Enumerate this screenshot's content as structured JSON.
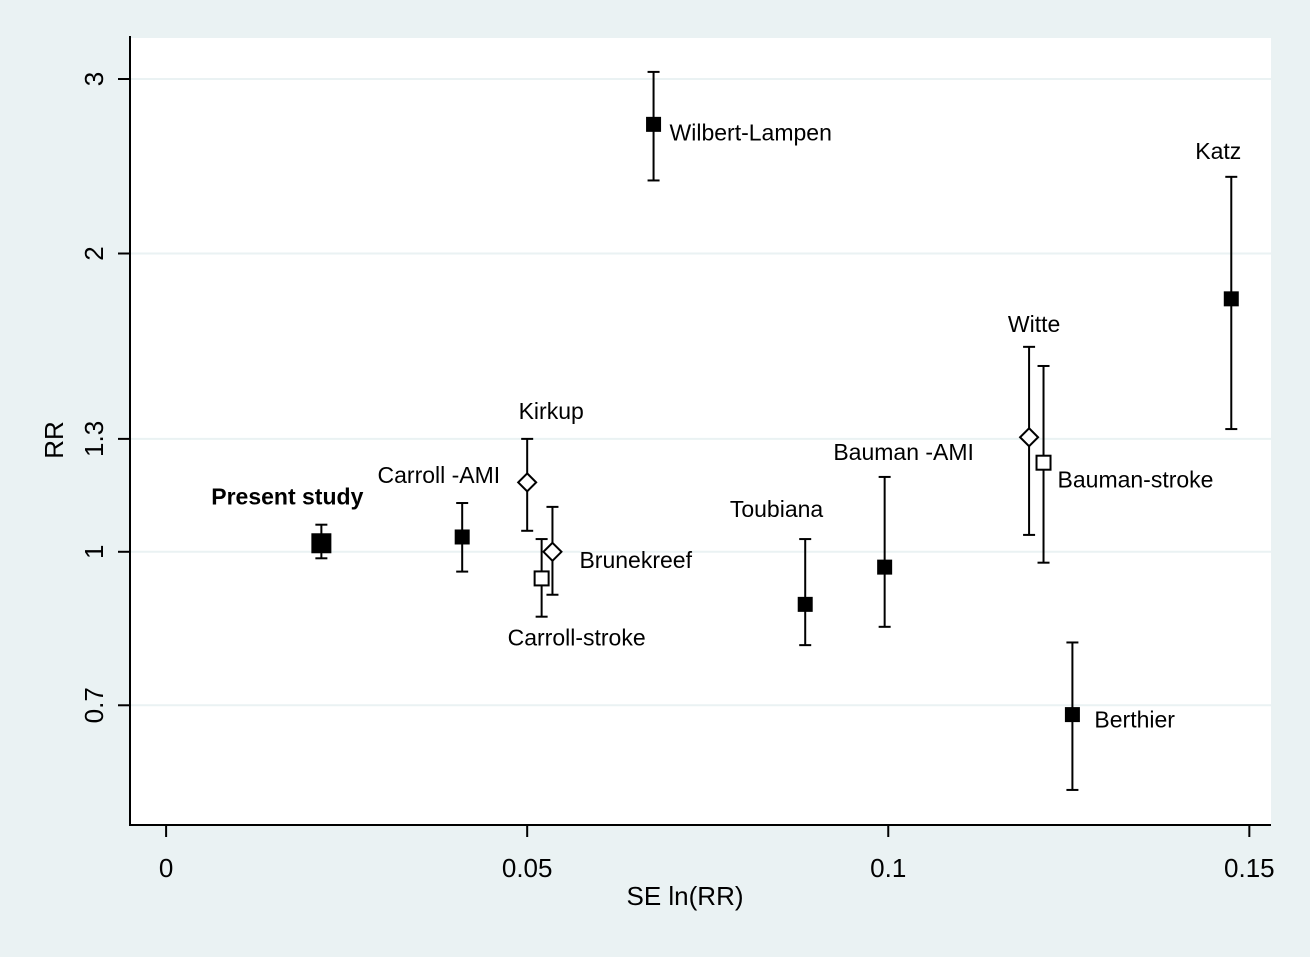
{
  "chart_data": {
    "type": "scatter",
    "title": "",
    "xlabel": "SE ln(RR)",
    "ylabel": "RR",
    "xlim": [
      -0.005,
      0.153
    ],
    "ylim_log": [
      0.53,
      3.3
    ],
    "y_scale": "log",
    "grid": "horizontal",
    "xticks": [
      {
        "value": 0,
        "label": "0"
      },
      {
        "value": 0.05,
        "label": "0.05"
      },
      {
        "value": 0.1,
        "label": "0.1"
      },
      {
        "value": 0.15,
        "label": "0.15"
      }
    ],
    "yticks": [
      {
        "value": 0.7,
        "label": "0.7"
      },
      {
        "value": 1,
        "label": "1"
      },
      {
        "value": 1.3,
        "label": "1.3"
      },
      {
        "value": 2,
        "label": "2"
      },
      {
        "value": 3,
        "label": "3"
      }
    ],
    "points": [
      {
        "name": "present-study",
        "label": "Present study",
        "se": 0.0215,
        "rr": 1.02,
        "lo": 0.985,
        "hi": 1.065,
        "marker": "filled-square-large",
        "bold": true,
        "label_pos": "top-left"
      },
      {
        "name": "carroll-ami",
        "label": "Carroll -AMI",
        "se": 0.041,
        "rr": 1.035,
        "lo": 0.955,
        "hi": 1.12,
        "marker": "filled-square",
        "label_pos": "top-left"
      },
      {
        "name": "kirkup",
        "label": "Kirkup",
        "se": 0.05,
        "rr": 1.175,
        "lo": 1.05,
        "hi": 1.3,
        "marker": "hollow-diamond",
        "label_pos": "top"
      },
      {
        "name": "brunekreef",
        "label": "Brunekreef",
        "se": 0.0535,
        "rr": 1.0,
        "lo": 0.905,
        "hi": 1.11,
        "marker": "hollow-diamond",
        "label_pos": "right"
      },
      {
        "name": "carroll-stroke",
        "label": "Carroll-stroke",
        "se": 0.052,
        "rr": 0.94,
        "lo": 0.86,
        "hi": 1.03,
        "marker": "hollow-square",
        "label_pos": "bottom"
      },
      {
        "name": "wilbert-lampen",
        "label": "Wilbert-Lampen",
        "se": 0.0675,
        "rr": 2.7,
        "lo": 2.37,
        "hi": 3.05,
        "marker": "filled-square",
        "label_pos": "right"
      },
      {
        "name": "toubiana",
        "label": "Toubiana",
        "se": 0.0885,
        "rr": 0.885,
        "lo": 0.805,
        "hi": 1.03,
        "marker": "filled-square",
        "label_pos": "top-left"
      },
      {
        "name": "bauman-ami",
        "label": "Bauman -AMI",
        "se": 0.0995,
        "rr": 0.965,
        "lo": 0.84,
        "hi": 1.19,
        "marker": "filled-square",
        "label_pos": "top"
      },
      {
        "name": "witte",
        "label": "Witte",
        "se": 0.1195,
        "rr": 1.305,
        "lo": 1.04,
        "hi": 1.61,
        "marker": "hollow-diamond",
        "label_pos": "top"
      },
      {
        "name": "bauman-stroke",
        "label": "Bauman-stroke",
        "se": 0.1215,
        "rr": 1.23,
        "lo": 0.975,
        "hi": 1.54,
        "marker": "hollow-square",
        "label_pos": "right"
      },
      {
        "name": "berthier",
        "label": "Berthier",
        "se": 0.1255,
        "rr": 0.685,
        "lo": 0.575,
        "hi": 0.81,
        "marker": "filled-square",
        "label_pos": "right"
      },
      {
        "name": "katz",
        "label": "Katz",
        "se": 0.1475,
        "rr": 1.8,
        "lo": 1.33,
        "hi": 2.39,
        "marker": "filled-square",
        "label_pos": "top-left"
      }
    ]
  }
}
